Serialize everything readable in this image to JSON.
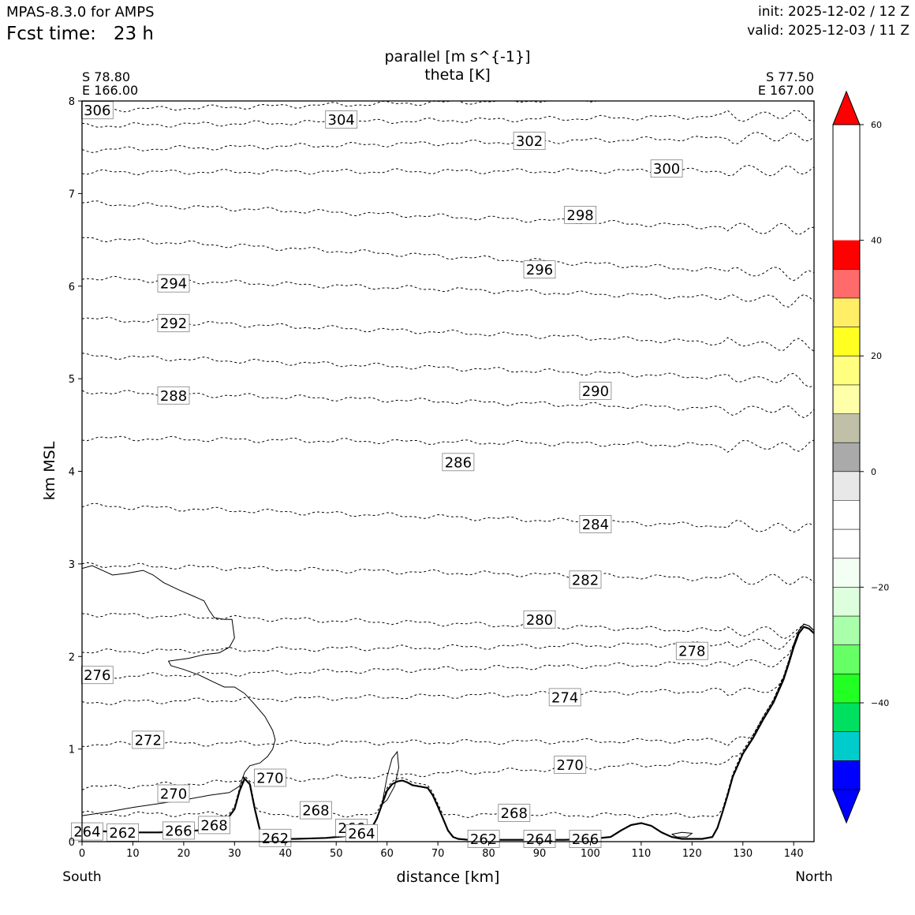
{
  "header": {
    "model": "MPAS-8.3.0 for AMPS",
    "fcst_label": "Fcst time:",
    "fcst_value": "23 h",
    "init": "init: 2025-12-02 / 12 Z",
    "valid": "valid: 2025-12-03 / 11 Z"
  },
  "chart_data": {
    "type": "contour",
    "title_line1": "parallel [m s^{-1}]",
    "title_line2": "theta [K]",
    "xlabel": "distance [km]",
    "ylabel": "km MSL",
    "xlim": [
      0,
      144
    ],
    "ylim": [
      0,
      8
    ],
    "x_ticks": [
      0,
      10,
      20,
      30,
      40,
      50,
      60,
      70,
      80,
      90,
      100,
      110,
      120,
      130,
      140
    ],
    "y_ticks": [
      0,
      1,
      2,
      3,
      4,
      5,
      6,
      7,
      8
    ],
    "start_point": {
      "lat": "S 78.80",
      "lon": "E 166.00"
    },
    "end_point": {
      "lat": "S 77.50",
      "lon": "E 167.00"
    },
    "left_end_label": "South",
    "right_end_label": "North",
    "colorbar": {
      "levels": [
        -55,
        -50,
        -45,
        -40,
        -35,
        -30,
        -25,
        -20,
        -15,
        -10,
        -5,
        0,
        5,
        10,
        15,
        20,
        25,
        30,
        35,
        40,
        45,
        50,
        55,
        60
      ],
      "colors": [
        "#0000ff",
        "#00cccc",
        "#00e060",
        "#22ff22",
        "#66ff66",
        "#aaffaa",
        "#ddffdd",
        "#f4fff4",
        "#ffffff",
        "#ffffff",
        "#e8e8e8",
        "#aaaaaa",
        "#c0c0a8",
        "#ffffaa",
        "#ffff80",
        "#ffff22",
        "#ffee66",
        "#ff6a6a",
        "#ff0000"
      ],
      "under_color": "#0000ff",
      "over_color": "#ff0000",
      "tick_values": [
        60,
        40,
        20,
        0,
        -20,
        -40
      ],
      "tick_labels": [
        "60",
        "40",
        "20",
        "0",
        "−20",
        "−40"
      ]
    },
    "terrain": {
      "x": [
        0,
        5,
        10,
        15,
        20,
        25,
        28,
        30,
        31,
        32,
        33,
        34,
        35,
        36,
        38,
        42,
        48,
        52,
        55,
        57,
        58,
        59,
        60,
        61,
        62,
        63,
        64,
        65,
        66,
        68,
        69,
        70,
        71,
        72,
        73,
        74,
        76,
        80,
        88,
        95,
        100,
        104,
        106,
        108,
        110,
        112,
        114,
        116,
        118,
        120,
        122,
        124,
        125,
        126,
        127,
        128,
        130,
        132,
        134,
        136,
        138,
        139,
        140,
        141,
        142,
        143,
        144
      ],
      "y": [
        0.12,
        0.11,
        0.1,
        0.1,
        0.11,
        0.13,
        0.2,
        0.35,
        0.55,
        0.68,
        0.62,
        0.35,
        0.12,
        0.04,
        0.03,
        0.03,
        0.04,
        0.06,
        0.09,
        0.15,
        0.25,
        0.4,
        0.55,
        0.62,
        0.65,
        0.66,
        0.64,
        0.61,
        0.6,
        0.58,
        0.5,
        0.38,
        0.25,
        0.12,
        0.05,
        0.03,
        0.02,
        0.02,
        0.02,
        0.02,
        0.03,
        0.05,
        0.12,
        0.18,
        0.2,
        0.17,
        0.1,
        0.05,
        0.03,
        0.03,
        0.03,
        0.05,
        0.15,
        0.32,
        0.5,
        0.7,
        0.95,
        1.12,
        1.32,
        1.5,
        1.75,
        1.92,
        2.1,
        2.25,
        2.32,
        2.3,
        2.25
      ]
    },
    "isentropes": [
      {
        "theta": 306,
        "y_start": 7.9,
        "y_end": 8.07
      },
      {
        "theta": 304,
        "y_start": 7.73,
        "y_end": 7.85
      },
      {
        "theta": 302,
        "y_start": 7.47,
        "y_end": 7.62
      },
      {
        "theta": 300,
        "y_start": 7.23,
        "y_end": 7.25
      },
      {
        "theta": 298,
        "y_start": 6.9,
        "y_end": 6.6
      },
      {
        "theta": 296,
        "y_start": 6.52,
        "y_end": 6.12
      },
      {
        "theta": 294,
        "y_start": 6.09,
        "y_end": 5.84
      },
      {
        "theta": 292,
        "y_start": 5.65,
        "y_end": 5.35
      },
      {
        "theta": 290,
        "y_start": 5.25,
        "y_end": 4.98
      },
      {
        "theta": 288,
        "y_start": 4.86,
        "y_end": 4.65
      },
      {
        "theta": 286,
        "y_start": 4.36,
        "y_end": 4.27
      },
      {
        "theta": 284,
        "y_start": 3.63,
        "y_end": 3.38
      },
      {
        "theta": 282,
        "y_start": 2.99,
        "y_end": 2.82
      },
      {
        "theta": 280,
        "y_start": 2.46,
        "y_end": 2.25
      },
      {
        "theta": 278,
        "y_start": 2.05,
        "y_end": 2.15
      },
      {
        "theta": 276,
        "y_start": 1.78,
        "y_end": 1.95
      },
      {
        "theta": 274,
        "y_start": 1.5,
        "y_end": 1.65
      },
      {
        "theta": 272,
        "y_start": 1.05,
        "y_end": 1.1
      },
      {
        "theta": 270,
        "y_start": 0.58,
        "y_end": 0.9
      },
      {
        "theta": 268,
        "y_start": 0.3,
        "y_end": 0.28
      }
    ],
    "contour_labels": [
      {
        "text": "306",
        "x": 3,
        "y": 7.9
      },
      {
        "text": "304",
        "x": 51,
        "y": 7.8
      },
      {
        "text": "302",
        "x": 88,
        "y": 7.57
      },
      {
        "text": "300",
        "x": 115,
        "y": 7.27
      },
      {
        "text": "298",
        "x": 98,
        "y": 6.77
      },
      {
        "text": "296",
        "x": 90,
        "y": 6.18
      },
      {
        "text": "294",
        "x": 18,
        "y": 6.03
      },
      {
        "text": "292",
        "x": 18,
        "y": 5.6
      },
      {
        "text": "290",
        "x": 101,
        "y": 4.87
      },
      {
        "text": "288",
        "x": 18,
        "y": 4.82
      },
      {
        "text": "286",
        "x": 74,
        "y": 4.1
      },
      {
        "text": "284",
        "x": 101,
        "y": 3.43
      },
      {
        "text": "282",
        "x": 99,
        "y": 2.83
      },
      {
        "text": "280",
        "x": 90,
        "y": 2.4
      },
      {
        "text": "278",
        "x": 120,
        "y": 2.06
      },
      {
        "text": "276",
        "x": 3,
        "y": 1.8
      },
      {
        "text": "274",
        "x": 95,
        "y": 1.56
      },
      {
        "text": "272",
        "x": 13,
        "y": 1.1
      },
      {
        "text": "270",
        "x": 96,
        "y": 0.83
      },
      {
        "text": "270",
        "x": 37,
        "y": 0.69
      },
      {
        "text": "270",
        "x": 18,
        "y": 0.52
      },
      {
        "text": "268",
        "x": 46,
        "y": 0.34
      },
      {
        "text": "268",
        "x": 85,
        "y": 0.31
      },
      {
        "text": "268",
        "x": 26,
        "y": 0.18
      },
      {
        "text": "266",
        "x": 53,
        "y": 0.15
      },
      {
        "text": "266",
        "x": 19,
        "y": 0.12
      },
      {
        "text": "266",
        "x": 99,
        "y": 0.03
      },
      {
        "text": "264",
        "x": 55,
        "y": 0.09
      },
      {
        "text": "264",
        "x": 90,
        "y": 0.03
      },
      {
        "text": "262",
        "x": 8,
        "y": 0.1
      },
      {
        "text": "262",
        "x": 38,
        "y": 0.04
      },
      {
        "text": "262",
        "x": 79,
        "y": 0.03
      },
      {
        "text": "264",
        "x": 1,
        "y": 0.11
      }
    ]
  }
}
